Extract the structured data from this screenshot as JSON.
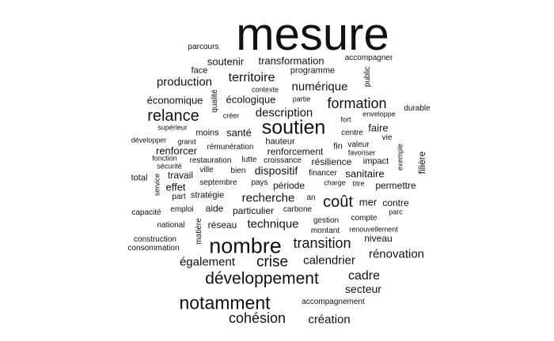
{
  "words": [
    "mesure",
    "soutien",
    "nombre",
    "développement",
    "notamment",
    "coût",
    "relance",
    "formation",
    "crise",
    "transition",
    "territoire",
    "cohésion",
    "production",
    "description",
    "technique",
    "recherche",
    "dispositif",
    "numérique",
    "cadre",
    "calendrier",
    "rénovation",
    "secteur",
    "création",
    "également",
    "soutenir",
    "transformation",
    "économique",
    "écologique",
    "faire",
    "santé",
    "renforcer",
    "période",
    "sanitaire",
    "permettre",
    "effet",
    "travail",
    "aide",
    "particulier",
    "réseau",
    "niveau",
    "face",
    "programme",
    "accompagner",
    "public",
    "qualité",
    "durable",
    "renforcement",
    "résilience",
    "impact",
    "mer",
    "contre",
    "fin",
    "valeur",
    "favoriser",
    "filière",
    "exemple",
    "vie",
    "centre",
    "enveloppe",
    "fort",
    "partie",
    "contexte",
    "parcours",
    "supérieur",
    "développer",
    "grand",
    "hauteur",
    "moins",
    "rémunération",
    "créer",
    "restauration",
    "lutte",
    "croissance",
    "fonction",
    "sécurité",
    "ville",
    "bien",
    "pays",
    "financer",
    "charge",
    "titre",
    "total",
    "service",
    "septembre",
    "part",
    "stratégie",
    "an",
    "capacité",
    "emploi",
    "carbone",
    "gestion",
    "compte",
    "parc",
    "national",
    "matière",
    "montant",
    "renouvellement",
    "construction",
    "consommation",
    "accompagnement"
  ]
}
